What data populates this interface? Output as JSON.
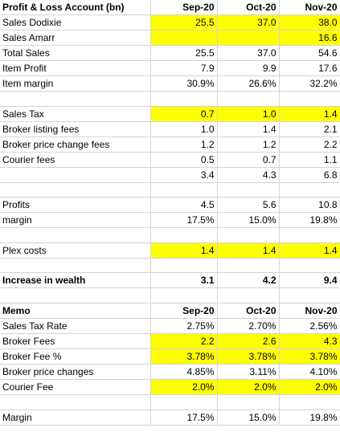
{
  "sheet_title": "Profit & Loss Account (bn)",
  "columns": [
    "Sep-20",
    "Oct-20",
    "Nov-20"
  ],
  "colors": {
    "highlight": "#ffff00",
    "gridline": "#d4d4d4"
  },
  "rows": [
    {
      "type": "header",
      "label": "Profit & Loss Account (bn)",
      "values": [
        "Sep-20",
        "Oct-20",
        "Nov-20"
      ],
      "hl": [
        false,
        false,
        false
      ]
    },
    {
      "type": "data",
      "label": "Sales Dodixie",
      "values": [
        "25.5",
        "37.0",
        "38.0"
      ],
      "hl": [
        true,
        true,
        true
      ]
    },
    {
      "type": "data",
      "label": "Sales Amarr",
      "values": [
        "",
        "",
        "16.6"
      ],
      "hl": [
        true,
        true,
        true
      ]
    },
    {
      "type": "data",
      "label": "Total Sales",
      "values": [
        "25.5",
        "37.0",
        "54.6"
      ],
      "hl": [
        false,
        false,
        false
      ]
    },
    {
      "type": "data",
      "label": "Item Profit",
      "values": [
        "7.9",
        "9.9",
        "17.6"
      ],
      "hl": [
        false,
        false,
        false
      ]
    },
    {
      "type": "data",
      "label": "Item margin",
      "values": [
        "30.9%",
        "26.6%",
        "32.2%"
      ],
      "hl": [
        false,
        false,
        false
      ]
    },
    {
      "type": "blank",
      "label": "",
      "values": [
        "",
        "",
        ""
      ],
      "hl": [
        false,
        false,
        false
      ]
    },
    {
      "type": "data",
      "label": "Sales Tax",
      "values": [
        "0.7",
        "1.0",
        "1.4"
      ],
      "hl": [
        true,
        true,
        true
      ]
    },
    {
      "type": "data",
      "label": "Broker listing fees",
      "values": [
        "1.0",
        "1.4",
        "2.1"
      ],
      "hl": [
        false,
        false,
        false
      ]
    },
    {
      "type": "data",
      "label": "Broker price change fees",
      "values": [
        "1.2",
        "1.2",
        "2.2"
      ],
      "hl": [
        false,
        false,
        false
      ]
    },
    {
      "type": "data",
      "label": "Courier fees",
      "values": [
        "0.5",
        "0.7",
        "1.1"
      ],
      "hl": [
        false,
        false,
        false
      ]
    },
    {
      "type": "data",
      "label": "",
      "values": [
        "3.4",
        "4.3",
        "6.8"
      ],
      "hl": [
        false,
        false,
        false
      ]
    },
    {
      "type": "blank",
      "label": "",
      "values": [
        "",
        "",
        ""
      ],
      "hl": [
        false,
        false,
        false
      ]
    },
    {
      "type": "data",
      "label": "Profits",
      "values": [
        "4.5",
        "5.6",
        "10.8"
      ],
      "hl": [
        false,
        false,
        false
      ]
    },
    {
      "type": "data",
      "label": "margin",
      "values": [
        "17.5%",
        "15.0%",
        "19.8%"
      ],
      "hl": [
        false,
        false,
        false
      ]
    },
    {
      "type": "blank",
      "label": "",
      "values": [
        "",
        "",
        ""
      ],
      "hl": [
        false,
        false,
        false
      ]
    },
    {
      "type": "data",
      "label": "Plex costs",
      "values": [
        "1.4",
        "1.4",
        "1.4"
      ],
      "hl": [
        true,
        true,
        true
      ]
    },
    {
      "type": "blank",
      "label": "",
      "values": [
        "",
        "",
        ""
      ],
      "hl": [
        false,
        false,
        false
      ]
    },
    {
      "type": "bold",
      "label": "Increase in wealth",
      "values": [
        "3.1",
        "4.2",
        "9.4"
      ],
      "hl": [
        false,
        false,
        false
      ]
    },
    {
      "type": "blank",
      "label": "",
      "values": [
        "",
        "",
        ""
      ],
      "hl": [
        false,
        false,
        false
      ]
    },
    {
      "type": "header",
      "label": "Memo",
      "values": [
        "Sep-20",
        "Oct-20",
        "Nov-20"
      ],
      "hl": [
        false,
        false,
        false
      ]
    },
    {
      "type": "data",
      "label": "Sales Tax Rate",
      "values": [
        "2.75%",
        "2.70%",
        "2.56%"
      ],
      "hl": [
        false,
        false,
        false
      ]
    },
    {
      "type": "data",
      "label": "Broker Fees",
      "values": [
        "2.2",
        "2.6",
        "4.3"
      ],
      "hl": [
        true,
        true,
        true
      ]
    },
    {
      "type": "data",
      "label": "Broker Fee %",
      "values": [
        "3.78%",
        "3.78%",
        "3.78%"
      ],
      "hl": [
        true,
        true,
        true
      ]
    },
    {
      "type": "data",
      "label": "Broker price changes",
      "values": [
        "4.85%",
        "3.11%",
        "4.10%"
      ],
      "hl": [
        false,
        false,
        false
      ]
    },
    {
      "type": "data",
      "label": "Courier Fee",
      "values": [
        "2.0%",
        "2.0%",
        "2.0%"
      ],
      "hl": [
        true,
        true,
        true
      ]
    },
    {
      "type": "blank",
      "label": "",
      "values": [
        "",
        "",
        ""
      ],
      "hl": [
        false,
        false,
        false
      ]
    },
    {
      "type": "data",
      "label": "Margin",
      "values": [
        "17.5%",
        "15.0%",
        "19.8%"
      ],
      "hl": [
        false,
        false,
        false
      ]
    }
  ]
}
